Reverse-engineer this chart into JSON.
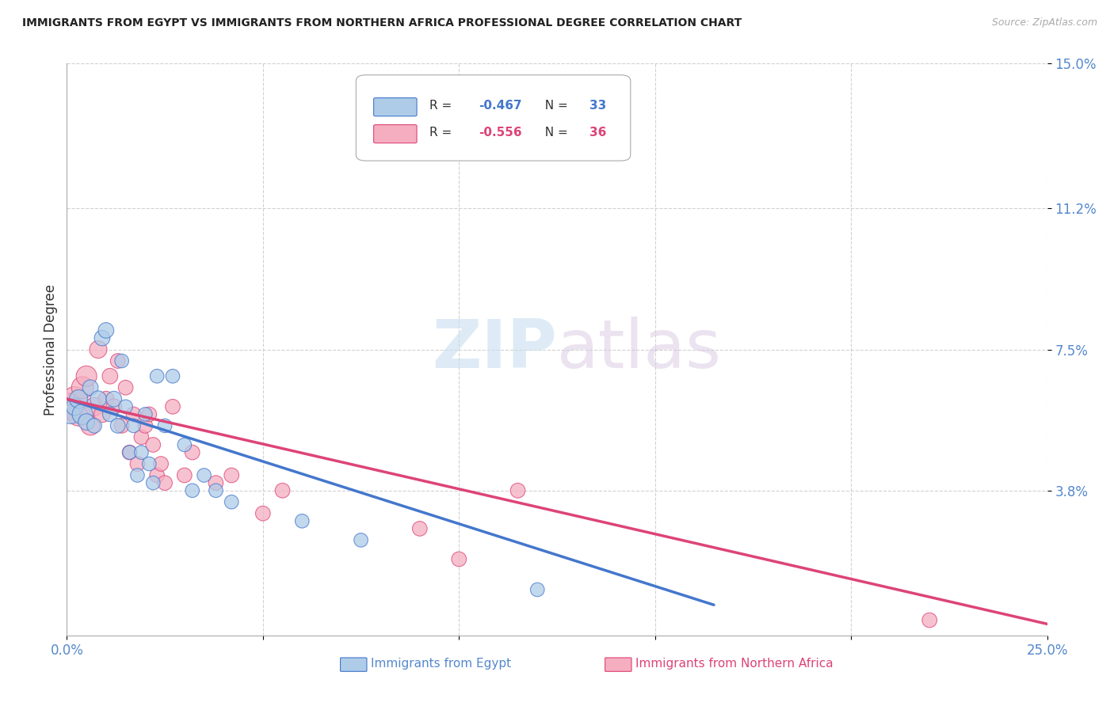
{
  "title": "IMMIGRANTS FROM EGYPT VS IMMIGRANTS FROM NORTHERN AFRICA PROFESSIONAL DEGREE CORRELATION CHART",
  "source": "Source: ZipAtlas.com",
  "xlabel_blue": "Immigrants from Egypt",
  "xlabel_pink": "Immigrants from Northern Africa",
  "ylabel": "Professional Degree",
  "xlim": [
    0.0,
    0.25
  ],
  "ylim": [
    0.0,
    0.15
  ],
  "legend_blue_R": "R = -0.467",
  "legend_blue_N": "N = 33",
  "legend_pink_R": "R = -0.556",
  "legend_pink_N": "N = 36",
  "blue_color": "#aecce8",
  "pink_color": "#f5aec0",
  "blue_line_color": "#4477cc",
  "pink_line_color": "#dd4477",
  "watermark_zip": "ZIP",
  "watermark_atlas": "atlas",
  "blue_x": [
    0.001,
    0.002,
    0.003,
    0.004,
    0.005,
    0.006,
    0.007,
    0.008,
    0.009,
    0.01,
    0.011,
    0.012,
    0.013,
    0.014,
    0.015,
    0.016,
    0.017,
    0.018,
    0.019,
    0.02,
    0.021,
    0.022,
    0.023,
    0.025,
    0.027,
    0.03,
    0.032,
    0.035,
    0.038,
    0.042,
    0.06,
    0.075,
    0.12
  ],
  "blue_y": [
    0.058,
    0.06,
    0.062,
    0.058,
    0.056,
    0.065,
    0.055,
    0.062,
    0.078,
    0.08,
    0.058,
    0.062,
    0.055,
    0.072,
    0.06,
    0.048,
    0.055,
    0.042,
    0.048,
    0.058,
    0.045,
    0.04,
    0.068,
    0.055,
    0.068,
    0.05,
    0.038,
    0.042,
    0.038,
    0.035,
    0.03,
    0.025,
    0.012
  ],
  "blue_size": [
    300,
    250,
    280,
    350,
    220,
    200,
    180,
    220,
    200,
    200,
    180,
    200,
    180,
    160,
    160,
    160,
    160,
    160,
    160,
    160,
    160,
    160,
    160,
    160,
    160,
    160,
    160,
    160,
    160,
    160,
    160,
    160,
    160
  ],
  "pink_x": [
    0.001,
    0.002,
    0.003,
    0.004,
    0.005,
    0.006,
    0.007,
    0.008,
    0.009,
    0.01,
    0.011,
    0.012,
    0.013,
    0.014,
    0.015,
    0.016,
    0.017,
    0.018,
    0.019,
    0.02,
    0.021,
    0.022,
    0.023,
    0.024,
    0.025,
    0.027,
    0.03,
    0.032,
    0.038,
    0.042,
    0.05,
    0.055,
    0.09,
    0.1,
    0.115,
    0.22
  ],
  "pink_y": [
    0.06,
    0.062,
    0.058,
    0.065,
    0.068,
    0.055,
    0.06,
    0.075,
    0.058,
    0.062,
    0.068,
    0.06,
    0.072,
    0.055,
    0.065,
    0.048,
    0.058,
    0.045,
    0.052,
    0.055,
    0.058,
    0.05,
    0.042,
    0.045,
    0.04,
    0.06,
    0.042,
    0.048,
    0.04,
    0.042,
    0.032,
    0.038,
    0.028,
    0.02,
    0.038,
    0.004
  ],
  "pink_size": [
    600,
    500,
    450,
    400,
    350,
    300,
    280,
    250,
    220,
    200,
    200,
    200,
    180,
    180,
    180,
    180,
    180,
    180,
    180,
    180,
    180,
    180,
    180,
    180,
    180,
    180,
    180,
    180,
    180,
    180,
    180,
    180,
    180,
    180,
    180,
    180
  ],
  "blue_line_x": [
    0.0,
    0.165
  ],
  "blue_line_y": [
    0.062,
    0.008
  ],
  "pink_line_x": [
    0.0,
    0.25
  ],
  "pink_line_y": [
    0.062,
    0.003
  ]
}
